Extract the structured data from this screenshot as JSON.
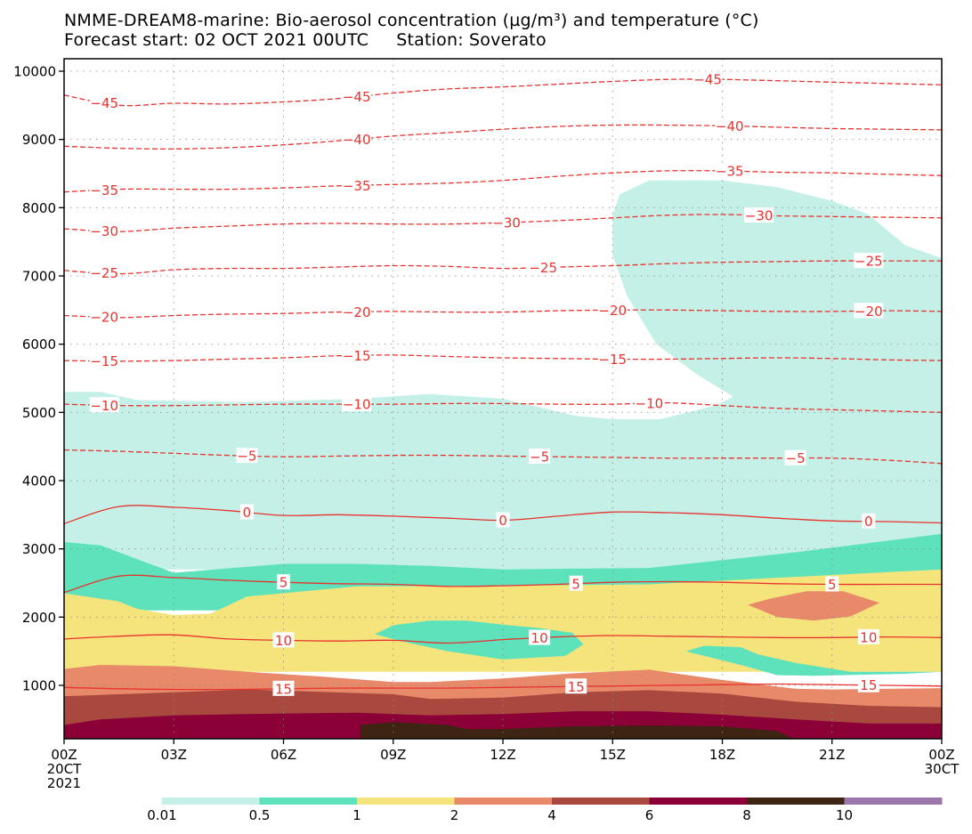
{
  "title_line1": "NMME-DREAM8-marine: Bio-aerosol concentration (µg/m³) and temperature (°C)",
  "title_line2": "Forecast start: 02 OCT 2021 00UTC     Station: Soverato",
  "chart_data": {
    "type": "contour",
    "title": "NMME-DREAM8-marine: Bio-aerosol concentration (µg/m³) and temperature (°C)",
    "subtitle": "Forecast start: 02 OCT 2021 00UTC     Station: Soverato",
    "xlabel": "",
    "ylabel": "",
    "x_ticks": [
      "00Z",
      "03Z",
      "06Z",
      "09Z",
      "12Z",
      "15Z",
      "18Z",
      "21Z",
      "00Z"
    ],
    "x_tick_hours": [
      0,
      3,
      6,
      9,
      12,
      15,
      18,
      21,
      24
    ],
    "x_tick_sub": [
      [
        "20CT",
        "2021"
      ],
      [],
      [],
      [],
      [],
      [],
      [],
      [],
      [
        "30CT"
      ]
    ],
    "xlim_hours": [
      0,
      24
    ],
    "y_ticks": [
      1000,
      2000,
      3000,
      4000,
      5000,
      6000,
      7000,
      8000,
      9000,
      10000
    ],
    "ylim": [
      200,
      10200
    ],
    "grid": "dotted",
    "colorbar": {
      "levels": [
        0.01,
        0.5,
        1,
        2,
        4,
        6,
        8,
        10
      ],
      "level_labels": [
        "0.01",
        "0.5",
        "1",
        "2",
        "4",
        "6",
        "8",
        "10"
      ],
      "colors": [
        "#c4f0e8",
        "#5de2bb",
        "#f5e47c",
        "#e8896a",
        "#a8483f",
        "#8a0037",
        "#3d2413",
        "#9b76aa"
      ]
    },
    "temperature_isotherms_C": [
      {
        "value": -45,
        "label": "-45",
        "style": "dashed",
        "height_m": [
          9650,
          9500,
          9530,
          9520,
          9550,
          9600,
          9680,
          9740,
          9770,
          9810,
          9850,
          9880,
          9880,
          9860,
          9840,
          9820,
          9800
        ],
        "label_at_hours": [
          [
            1.1,
            -45
          ],
          [
            8.0,
            -45
          ],
          [
            17.6,
            -45
          ]
        ]
      },
      {
        "value": -40,
        "label": "-40",
        "style": "dashed",
        "height_m": [
          8900,
          8870,
          8860,
          8880,
          8920,
          8980,
          9050,
          9100,
          9150,
          9190,
          9210,
          9210,
          9200,
          9180,
          9160,
          9150,
          9140
        ],
        "label_at_hours": [
          [
            8.0,
            -40
          ],
          [
            18.2,
            -40
          ]
        ]
      },
      {
        "value": -35,
        "label": "-35",
        "style": "dashed",
        "height_m": [
          8230,
          8270,
          8270,
          8270,
          8290,
          8320,
          8340,
          8360,
          8400,
          8460,
          8510,
          8540,
          8540,
          8520,
          8510,
          8490,
          8470
        ],
        "label_at_hours": [
          [
            1.1,
            -35
          ],
          [
            8.0,
            -35
          ],
          [
            18.2,
            -35
          ]
        ]
      },
      {
        "value": -30,
        "label": "-30",
        "style": "dashed",
        "height_m": [
          7690,
          7650,
          7700,
          7730,
          7760,
          7770,
          7760,
          7760,
          7780,
          7810,
          7850,
          7890,
          7900,
          7880,
          7870,
          7860,
          7850
        ],
        "label_at_hours": [
          [
            1.1,
            -30
          ],
          [
            12.1,
            -30
          ],
          [
            19.0,
            -30
          ]
        ]
      },
      {
        "value": -25,
        "label": "-25",
        "style": "dashed",
        "height_m": [
          7080,
          7030,
          7090,
          7110,
          7110,
          7130,
          7150,
          7140,
          7110,
          7130,
          7150,
          7180,
          7200,
          7210,
          7220,
          7220,
          7220
        ],
        "label_at_hours": [
          [
            1.1,
            -25
          ],
          [
            13.1,
            -25
          ],
          [
            22.0,
            -25
          ]
        ]
      },
      {
        "value": -20,
        "label": "-20",
        "style": "dashed",
        "height_m": [
          6420,
          6390,
          6420,
          6440,
          6450,
          6470,
          6480,
          6470,
          6470,
          6490,
          6500,
          6500,
          6490,
          6480,
          6480,
          6490,
          6480
        ],
        "label_at_hours": [
          [
            1.1,
            -20
          ],
          [
            8.0,
            -20
          ],
          [
            15.0,
            -20
          ],
          [
            22.0,
            -20
          ]
        ]
      },
      {
        "value": -15,
        "label": "-15",
        "style": "dashed",
        "height_m": [
          5760,
          5750,
          5760,
          5780,
          5800,
          5830,
          5840,
          5820,
          5800,
          5790,
          5780,
          5780,
          5790,
          5800,
          5790,
          5770,
          5760
        ],
        "label_at_hours": [
          [
            1.1,
            -15
          ],
          [
            8.0,
            -15
          ],
          [
            15.0,
            -15
          ]
        ]
      },
      {
        "value": -10,
        "label": "-10",
        "style": "dashed",
        "height_m": [
          5120,
          5100,
          5100,
          5110,
          5120,
          5120,
          5120,
          5130,
          5130,
          5120,
          5120,
          5140,
          5100,
          5060,
          5040,
          5020,
          5000
        ],
        "label_at_hours": [
          [
            1.1,
            -10
          ],
          [
            8.0,
            -10
          ],
          [
            16.0,
            -10
          ]
        ]
      },
      {
        "value": -5,
        "label": "-5",
        "style": "dashed",
        "height_m": [
          4450,
          4430,
          4400,
          4370,
          4350,
          4360,
          4370,
          4370,
          4360,
          4350,
          4340,
          4330,
          4330,
          4330,
          4330,
          4300,
          4250
        ],
        "label_at_hours": [
          [
            5.0,
            -5
          ],
          [
            13.0,
            -5
          ],
          [
            20.0,
            -5
          ]
        ]
      },
      {
        "value": 0,
        "label": "0",
        "style": "solid",
        "height_m": [
          3370,
          3620,
          3610,
          3560,
          3490,
          3500,
          3480,
          3450,
          3420,
          3480,
          3540,
          3530,
          3500,
          3450,
          3410,
          3400,
          3380
        ],
        "label_at_hours": [
          [
            5.0,
            0
          ],
          [
            12.0,
            0
          ],
          [
            22.0,
            0
          ]
        ]
      },
      {
        "value": 5,
        "label": "5",
        "style": "solid",
        "height_m": [
          2360,
          2600,
          2580,
          2540,
          2510,
          2490,
          2480,
          2450,
          2460,
          2480,
          2510,
          2520,
          2510,
          2490,
          2480,
          2480,
          2480
        ],
        "label_at_hours": [
          [
            6.0,
            5
          ],
          [
            14.0,
            5
          ],
          [
            21.0,
            5
          ]
        ]
      },
      {
        "value": 10,
        "label": "10",
        "style": "solid",
        "height_m": [
          1680,
          1720,
          1740,
          1680,
          1660,
          1650,
          1660,
          1620,
          1670,
          1710,
          1730,
          1720,
          1710,
          1700,
          1700,
          1710,
          1700
        ],
        "label_at_hours": [
          [
            6.0,
            10
          ],
          [
            13.0,
            10
          ],
          [
            22.0,
            10
          ]
        ]
      },
      {
        "value": 15,
        "label": "15",
        "style": "solid",
        "height_m": [
          970,
          950,
          940,
          940,
          950,
          960,
          960,
          960,
          970,
          980,
          990,
          1000,
          1010,
          1020,
          1010,
          1000,
          990
        ],
        "label_at_hours": [
          [
            6.0,
            15
          ],
          [
            14.0,
            15
          ],
          [
            22.0,
            15
          ]
        ]
      }
    ],
    "concentration_regions": [
      {
        "level": 0.01,
        "outline_hm": [
          [
            0,
            5300
          ],
          [
            1,
            5300
          ],
          [
            2,
            5180
          ],
          [
            5,
            5150
          ],
          [
            8,
            5200
          ],
          [
            10,
            5270
          ],
          [
            12,
            5200
          ],
          [
            14,
            4950
          ],
          [
            15,
            4900
          ],
          [
            16.3,
            4900
          ],
          [
            17.8,
            5100
          ],
          [
            18.3,
            5230
          ],
          [
            17.3,
            5560
          ],
          [
            16.2,
            6000
          ],
          [
            15.4,
            6700
          ],
          [
            15.0,
            7300
          ],
          [
            15.0,
            7900
          ],
          [
            15.2,
            8200
          ],
          [
            16.0,
            8400
          ],
          [
            18.0,
            8400
          ],
          [
            19.5,
            8300
          ],
          [
            21.0,
            8100
          ],
          [
            22.0,
            7900
          ],
          [
            23.0,
            7450
          ],
          [
            24,
            7260
          ],
          [
            24,
            2700
          ],
          [
            0,
            2700
          ]
        ]
      },
      {
        "level": 0.5,
        "outline_hm": [
          [
            0,
            3100
          ],
          [
            1,
            3050
          ],
          [
            2,
            2850
          ],
          [
            3,
            2650
          ],
          [
            6,
            2780
          ],
          [
            8,
            2780
          ],
          [
            10,
            2750
          ],
          [
            12,
            2700
          ],
          [
            16,
            2720
          ],
          [
            20,
            2950
          ],
          [
            24,
            3220
          ],
          [
            24,
            2100
          ],
          [
            0,
            2100
          ]
        ]
      },
      {
        "level": 1,
        "outline_hm": [
          [
            0,
            2350
          ],
          [
            1.5,
            2230
          ],
          [
            2,
            2120
          ],
          [
            3,
            2030
          ],
          [
            4,
            2050
          ],
          [
            5,
            2300
          ],
          [
            8,
            2450
          ],
          [
            12,
            2460
          ],
          [
            16,
            2480
          ],
          [
            24,
            2700
          ],
          [
            24,
            1200
          ],
          [
            0,
            1200
          ]
        ]
      },
      {
        "level": 0.5,
        "outline_hm": [
          [
            8.5,
            1750
          ],
          [
            9.0,
            1880
          ],
          [
            10.0,
            1950
          ],
          [
            11.0,
            1950
          ],
          [
            12.0,
            1890
          ],
          [
            13.0,
            1840
          ],
          [
            13.9,
            1770
          ],
          [
            14.2,
            1600
          ],
          [
            13.7,
            1430
          ],
          [
            12.0,
            1380
          ],
          [
            10.5,
            1500
          ],
          [
            9.2,
            1650
          ]
        ]
      },
      {
        "level": 0.5,
        "outline_hm": [
          [
            17.0,
            1500
          ],
          [
            17.5,
            1580
          ],
          [
            18.5,
            1560
          ],
          [
            19.0,
            1450
          ],
          [
            20.0,
            1330
          ],
          [
            21.5,
            1200
          ],
          [
            24,
            1200
          ],
          [
            23,
            1170
          ],
          [
            20.5,
            1140
          ],
          [
            19.5,
            1150
          ],
          [
            18.5,
            1300
          ]
        ]
      },
      {
        "level": 2,
        "outline_hm": [
          [
            0,
            1240
          ],
          [
            1,
            1300
          ],
          [
            3,
            1280
          ],
          [
            5,
            1200
          ],
          [
            7,
            1130
          ],
          [
            9,
            1050
          ],
          [
            10,
            1050
          ],
          [
            12,
            1100
          ],
          [
            14,
            1180
          ],
          [
            16,
            1230
          ],
          [
            18,
            1080
          ],
          [
            20,
            950
          ],
          [
            21,
            940
          ],
          [
            24,
            960
          ],
          [
            24,
            500
          ],
          [
            0,
            500
          ]
        ]
      },
      {
        "level": 2,
        "outline_hm": [
          [
            18.7,
            2180
          ],
          [
            19.3,
            2270
          ],
          [
            20.3,
            2380
          ],
          [
            21.3,
            2380
          ],
          [
            22.3,
            2210
          ],
          [
            21.5,
            2010
          ],
          [
            20.5,
            1950
          ],
          [
            19.5,
            2000
          ]
        ]
      },
      {
        "level": 4,
        "outline_hm": [
          [
            0,
            840
          ],
          [
            1,
            860
          ],
          [
            3,
            900
          ],
          [
            5,
            940
          ],
          [
            9,
            870
          ],
          [
            10,
            800
          ],
          [
            12,
            820
          ],
          [
            14,
            900
          ],
          [
            16,
            930
          ],
          [
            18,
            880
          ],
          [
            20,
            760
          ],
          [
            22,
            700
          ],
          [
            24,
            680
          ],
          [
            24,
            400
          ],
          [
            0,
            400
          ]
        ]
      },
      {
        "level": 6,
        "outline_hm": [
          [
            0,
            420
          ],
          [
            1,
            500
          ],
          [
            3,
            560
          ],
          [
            5,
            580
          ],
          [
            8,
            600
          ],
          [
            10,
            560
          ],
          [
            12,
            580
          ],
          [
            14,
            620
          ],
          [
            16,
            620
          ],
          [
            18,
            570
          ],
          [
            20,
            500
          ],
          [
            22,
            440
          ],
          [
            24,
            440
          ],
          [
            24,
            200
          ],
          [
            0,
            200
          ]
        ]
      },
      {
        "level": 8,
        "outline_hm": [
          [
            8.1,
            420
          ],
          [
            9,
            460
          ],
          [
            10.5,
            420
          ],
          [
            11,
            360
          ],
          [
            12,
            360
          ],
          [
            14,
            400
          ],
          [
            16,
            410
          ],
          [
            18,
            400
          ],
          [
            19.5,
            330
          ],
          [
            20,
            200
          ],
          [
            8.1,
            200
          ]
        ]
      }
    ]
  }
}
